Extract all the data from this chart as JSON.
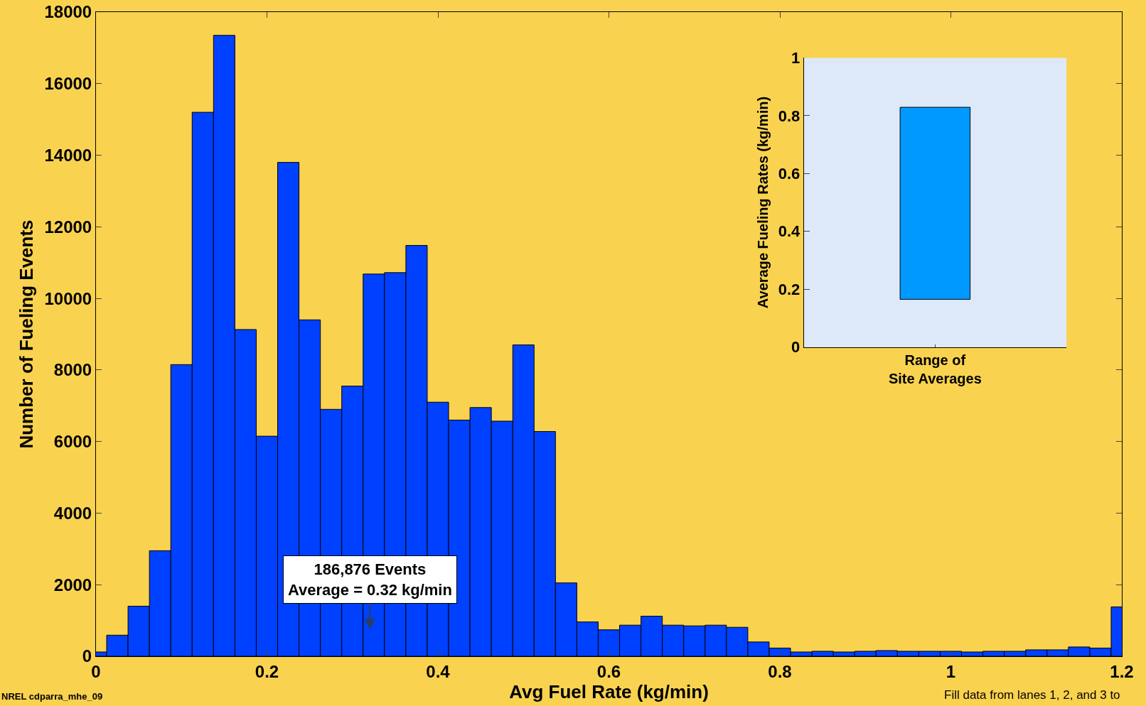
{
  "chart_data": [
    {
      "type": "histogram",
      "xlabel": "Avg Fuel Rate (kg/min)",
      "ylabel": "Number of Fueling Events",
      "bins": [
        -0.0125,
        0.0125,
        0.0375,
        0.0625,
        0.0875,
        0.1125,
        0.1375,
        0.1625,
        0.1875,
        0.2125,
        0.2375,
        0.2625,
        0.2875,
        0.3125,
        0.3375,
        0.3625,
        0.3875,
        0.4125,
        0.4375,
        0.4625,
        0.4875,
        0.5125,
        0.5375,
        0.5625,
        0.5875,
        0.6125,
        0.6375,
        0.6625,
        0.6875,
        0.7125,
        0.7375,
        0.7625,
        0.7875,
        0.8125,
        0.8375,
        0.8625,
        0.8875,
        0.9125,
        0.9375,
        0.9625,
        0.9875,
        1.0125,
        1.0375,
        1.0625,
        1.0875,
        1.1125,
        1.1375,
        1.1625,
        1.1875,
        1.2125
      ],
      "values": [
        120,
        590,
        1400,
        2950,
        8150,
        15200,
        17350,
        9130,
        6150,
        13800,
        9400,
        6900,
        7550,
        10680,
        10720,
        11480,
        7100,
        6600,
        6950,
        6570,
        8700,
        6280,
        2050,
        960,
        740,
        870,
        1120,
        870,
        850,
        870,
        810,
        400,
        230,
        120,
        140,
        120,
        140,
        160,
        140,
        140,
        140,
        120,
        140,
        140,
        180,
        180,
        260,
        230,
        1380
      ],
      "color": "#0040ff",
      "xlim": [
        0,
        1.2
      ],
      "xticks": [
        0,
        0.2,
        0.4,
        0.6,
        0.8,
        1,
        1.2
      ],
      "ylim": [
        0,
        18000
      ],
      "yticks": [
        0,
        2000,
        4000,
        6000,
        8000,
        10000,
        12000,
        14000,
        16000,
        18000
      ],
      "grid": false,
      "annotations": [
        "186,876 Events\nAverage = 0.32 kg/min",
        "NREL cdparra_mhe_09",
        "Fill data from lanes 1, 2, and 3 to"
      ]
    },
    {
      "type": "bar",
      "categories": [
        "Range of\nSite Averages"
      ],
      "values": [
        0.664
      ],
      "base": [
        0.165
      ],
      "color": "#0099ff",
      "ylabel": "Average Fueling Rates (kg/min)",
      "ylim": [
        0,
        1
      ],
      "yticks": [
        0,
        0.2,
        0.4,
        0.6,
        0.8,
        1
      ],
      "grid": false
    }
  ]
}
